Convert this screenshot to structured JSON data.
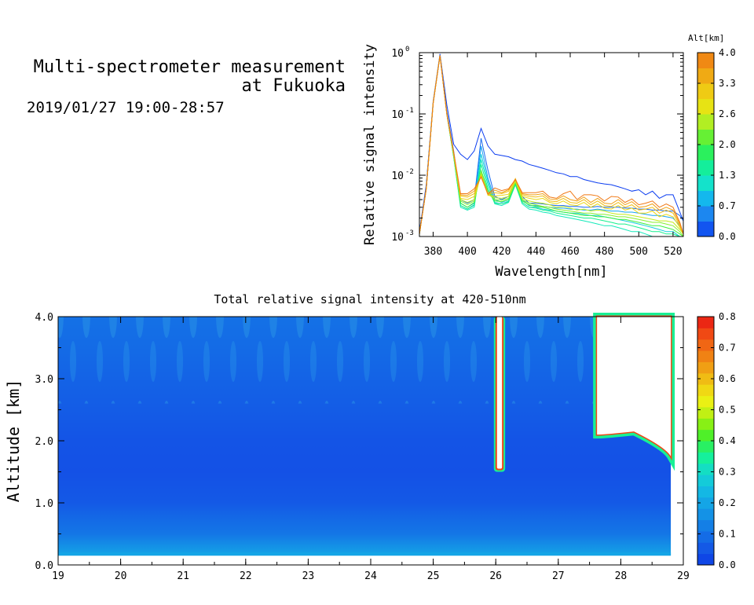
{
  "header": {
    "title_line1": "Multi-spectrometer measurement",
    "title_line2": "at Fukuoka",
    "date_range": "2019/01/27 19:00-28:57"
  },
  "colors": {
    "spectrum_palette": [
      "#0a3cf0",
      "#1e78f0",
      "#14b4f0",
      "#14e6c8",
      "#14f08c",
      "#3cf03c",
      "#a0f028",
      "#e6e614",
      "#f0c814",
      "#f0a014",
      "#f07814"
    ],
    "intensity_palette": [
      "#0a3ce6",
      "#1450e6",
      "#1464e6",
      "#1478e6",
      "#148ce6",
      "#14a0e6",
      "#14b4e6",
      "#14c8dc",
      "#14dcc8",
      "#14f0a0",
      "#28f064",
      "#50f028",
      "#8cf014",
      "#c8f014",
      "#f0f014",
      "#f0d214",
      "#f0b414",
      "#f09614",
      "#f07814",
      "#f05a14",
      "#f03c14",
      "#e61414"
    ]
  },
  "chart_data": [
    {
      "type": "line",
      "title": "",
      "xlabel": "Wavelength[nm]",
      "ylabel": "Relative signal intensity",
      "yscale": "log",
      "xlim": [
        372,
        526
      ],
      "ylim": [
        0.001,
        1
      ],
      "xticks": [
        380,
        400,
        420,
        440,
        460,
        480,
        500,
        520
      ],
      "yticks": [
        {
          "value": 1,
          "label": "10",
          "exp": "0"
        },
        {
          "value": 0.1,
          "label": "10",
          "exp": "-1"
        },
        {
          "value": 0.01,
          "label": "10",
          "exp": "-2"
        },
        {
          "value": 0.001,
          "label": "10",
          "exp": "-3"
        }
      ],
      "colorbar": {
        "label": "Alt[km]",
        "range": [
          0,
          4
        ],
        "ticks": [
          "4.0",
          "3.3",
          "2.6",
          "2.0",
          "1.3",
          "0.7",
          "0.0"
        ]
      },
      "x": [
        372,
        376,
        380,
        384,
        388,
        392,
        396,
        400,
        404,
        408,
        412,
        416,
        420,
        424,
        428,
        432,
        436,
        440,
        444,
        448,
        452,
        456,
        460,
        464,
        468,
        472,
        476,
        480,
        484,
        488,
        492,
        496,
        500,
        504,
        508,
        512,
        516,
        520,
        524,
        526
      ],
      "series": [
        {
          "altitude_km": 0.0,
          "values": [
            0.0012,
            0.007,
            0.16,
            0.95,
            0.14,
            0.032,
            0.022,
            0.018,
            0.025,
            0.058,
            0.03,
            0.022,
            0.021,
            0.02,
            0.018,
            0.017,
            0.015,
            0.014,
            0.013,
            0.012,
            0.011,
            0.0105,
            0.0095,
            0.0095,
            0.0085,
            0.008,
            0.0075,
            0.0072,
            0.007,
            0.0065,
            0.006,
            0.0055,
            0.0058,
            0.0048,
            0.0055,
            0.0042,
            0.0048,
            0.0048,
            0.0025,
            0.0018
          ]
        },
        {
          "altitude_km": 0.3,
          "values": [
            0.0011,
            0.0065,
            0.15,
            0.92,
            0.11,
            0.025,
            0.004,
            0.0035,
            0.004,
            0.04,
            0.012,
            0.0045,
            0.004,
            0.0045,
            0.008,
            0.0045,
            0.0035,
            0.0035,
            0.0034,
            0.0033,
            0.0032,
            0.0032,
            0.0031,
            0.0031,
            0.003,
            0.003,
            0.0031,
            0.003,
            0.003,
            0.003,
            0.0029,
            0.0029,
            0.0028,
            0.0028,
            0.0027,
            0.0027,
            0.0026,
            0.0026,
            0.0022,
            0.0018
          ]
        },
        {
          "altitude_km": 0.7,
          "values": [
            0.0011,
            0.006,
            0.15,
            0.9,
            0.1,
            0.022,
            0.0035,
            0.003,
            0.0035,
            0.03,
            0.009,
            0.004,
            0.0036,
            0.004,
            0.0075,
            0.004,
            0.0032,
            0.0032,
            0.0031,
            0.003,
            0.0029,
            0.0029,
            0.0028,
            0.0028,
            0.0027,
            0.0027,
            0.0028,
            0.0027,
            0.0026,
            0.0026,
            0.0025,
            0.0025,
            0.0024,
            0.0023,
            0.0022,
            0.0022,
            0.0021,
            0.002,
            0.0015,
            0.0011
          ]
        },
        {
          "altitude_km": 1.0,
          "values": [
            0.0011,
            0.006,
            0.15,
            0.9,
            0.1,
            0.02,
            0.0032,
            0.0028,
            0.0032,
            0.022,
            0.008,
            0.0036,
            0.0034,
            0.0038,
            0.007,
            0.0036,
            0.003,
            0.003,
            0.0028,
            0.0027,
            0.0026,
            0.0025,
            0.0024,
            0.0024,
            0.0023,
            0.0022,
            0.0022,
            0.0021,
            0.002,
            0.0019,
            0.0018,
            0.0017,
            0.0016,
            0.0015,
            0.0014,
            0.0013,
            0.0012,
            0.0012,
            0.001,
            0.001
          ]
        },
        {
          "altitude_km": 1.3,
          "values": [
            0.0011,
            0.006,
            0.15,
            0.9,
            0.1,
            0.02,
            0.003,
            0.0027,
            0.003,
            0.018,
            0.007,
            0.0034,
            0.0032,
            0.0036,
            0.007,
            0.0034,
            0.0028,
            0.0027,
            0.0025,
            0.0024,
            0.0022,
            0.0021,
            0.002,
            0.0019,
            0.0018,
            0.0017,
            0.0016,
            0.0015,
            0.0015,
            0.0014,
            0.0013,
            0.0012,
            0.0012,
            0.0011,
            0.001,
            0.001,
            0.001,
            0.001,
            0.001,
            0.001
          ]
        },
        {
          "altitude_km": 1.6,
          "values": [
            0.0011,
            0.006,
            0.15,
            0.9,
            0.1,
            0.02,
            0.0032,
            0.0028,
            0.0033,
            0.015,
            0.006,
            0.0035,
            0.0034,
            0.0037,
            0.0072,
            0.0036,
            0.003,
            0.0029,
            0.0027,
            0.0026,
            0.0024,
            0.0023,
            0.0022,
            0.0021,
            0.002,
            0.002,
            0.0019,
            0.0018,
            0.0017,
            0.0016,
            0.0016,
            0.0015,
            0.0014,
            0.0013,
            0.0012,
            0.0012,
            0.0011,
            0.0011,
            0.001,
            0.001
          ]
        },
        {
          "altitude_km": 2.0,
          "values": [
            0.0011,
            0.006,
            0.15,
            0.9,
            0.1,
            0.021,
            0.0035,
            0.003,
            0.0036,
            0.012,
            0.0055,
            0.0038,
            0.0037,
            0.004,
            0.0075,
            0.0038,
            0.0033,
            0.0031,
            0.003,
            0.0028,
            0.0026,
            0.0025,
            0.0024,
            0.0023,
            0.0022,
            0.0022,
            0.0021,
            0.0021,
            0.002,
            0.0019,
            0.0019,
            0.0018,
            0.0017,
            0.0016,
            0.0015,
            0.0015,
            0.0014,
            0.0013,
            0.0011,
            0.001
          ]
        },
        {
          "altitude_km": 2.3,
          "values": [
            0.0011,
            0.006,
            0.15,
            0.9,
            0.1,
            0.021,
            0.0038,
            0.0033,
            0.0038,
            0.011,
            0.005,
            0.004,
            0.0039,
            0.0042,
            0.0078,
            0.004,
            0.0035,
            0.0033,
            0.0031,
            0.003,
            0.0028,
            0.0027,
            0.0026,
            0.0025,
            0.0024,
            0.0024,
            0.0023,
            0.0023,
            0.0022,
            0.0021,
            0.0021,
            0.002,
            0.0019,
            0.0018,
            0.0017,
            0.0017,
            0.0016,
            0.0015,
            0.0012,
            0.001
          ]
        },
        {
          "altitude_km": 2.6,
          "values": [
            0.0011,
            0.006,
            0.15,
            0.9,
            0.1,
            0.022,
            0.004,
            0.0036,
            0.004,
            0.0105,
            0.0048,
            0.0043,
            0.0042,
            0.0045,
            0.008,
            0.0042,
            0.0038,
            0.0036,
            0.0035,
            0.0033,
            0.003,
            0.0031,
            0.0029,
            0.0027,
            0.0028,
            0.0026,
            0.0027,
            0.0026,
            0.0024,
            0.0023,
            0.0023,
            0.0022,
            0.0021,
            0.002,
            0.0019,
            0.0018,
            0.0018,
            0.0017,
            0.0013,
            0.0011
          ]
        },
        {
          "altitude_km": 3.0,
          "values": [
            0.0011,
            0.006,
            0.15,
            0.9,
            0.1,
            0.022,
            0.0042,
            0.004,
            0.0045,
            0.01,
            0.0047,
            0.0046,
            0.0047,
            0.0049,
            0.0085,
            0.0045,
            0.0042,
            0.004,
            0.0042,
            0.0036,
            0.0034,
            0.0038,
            0.0033,
            0.0032,
            0.0036,
            0.003,
            0.0034,
            0.0029,
            0.0028,
            0.0032,
            0.0027,
            0.0029,
            0.0024,
            0.0024,
            0.0026,
            0.0021,
            0.0023,
            0.0021,
            0.0014,
            0.0011
          ]
        },
        {
          "altitude_km": 3.3,
          "values": [
            0.0011,
            0.006,
            0.15,
            0.9,
            0.1,
            0.023,
            0.0046,
            0.0044,
            0.005,
            0.0098,
            0.0048,
            0.0052,
            0.005,
            0.0055,
            0.0088,
            0.0048,
            0.0045,
            0.0044,
            0.0046,
            0.0038,
            0.0037,
            0.0042,
            0.0036,
            0.0035,
            0.004,
            0.0033,
            0.0038,
            0.0032,
            0.0031,
            0.0036,
            0.003,
            0.0033,
            0.0027,
            0.0028,
            0.003,
            0.0024,
            0.0027,
            0.0024,
            0.0015,
            0.0011
          ]
        },
        {
          "altitude_km": 3.6,
          "values": [
            0.0011,
            0.006,
            0.15,
            0.9,
            0.1,
            0.023,
            0.0048,
            0.0047,
            0.0055,
            0.0095,
            0.0049,
            0.0057,
            0.0052,
            0.0058,
            0.0085,
            0.005,
            0.0048,
            0.0048,
            0.005,
            0.0041,
            0.004,
            0.0046,
            0.004,
            0.0038,
            0.0044,
            0.0036,
            0.0042,
            0.0035,
            0.0034,
            0.004,
            0.0033,
            0.0037,
            0.003,
            0.0031,
            0.0034,
            0.0027,
            0.003,
            0.0027,
            0.0016,
            0.0011
          ]
        },
        {
          "altitude_km": 4.0,
          "values": [
            0.0011,
            0.006,
            0.15,
            0.9,
            0.1,
            0.024,
            0.005,
            0.005,
            0.006,
            0.0093,
            0.005,
            0.0062,
            0.0056,
            0.006,
            0.0085,
            0.0052,
            0.0052,
            0.0052,
            0.0055,
            0.0044,
            0.0042,
            0.005,
            0.0055,
            0.004,
            0.0048,
            0.0048,
            0.0046,
            0.0038,
            0.0045,
            0.0044,
            0.0036,
            0.0041,
            0.0033,
            0.0035,
            0.0038,
            0.003,
            0.0034,
            0.003,
            0.0017,
            0.0011
          ]
        }
      ]
    },
    {
      "type": "heatmap",
      "title": "Total relative signal intensity at 420-510nm",
      "xlabel": "",
      "ylabel": "Altitude [km]",
      "xlim": [
        19,
        29
      ],
      "ylim": [
        0,
        4
      ],
      "xticks": [
        "19",
        "20",
        "21",
        "22",
        "23",
        "24",
        "25",
        "26",
        "27",
        "28",
        "29"
      ],
      "yticks": [
        "0.0",
        "1.0",
        "2.0",
        "3.0",
        "4.0"
      ],
      "data_extent_x": [
        19,
        28.8
      ],
      "data_extent_y": [
        0.15,
        4.0
      ],
      "colorbar": {
        "range": [
          0,
          0.8
        ],
        "ticks": [
          "0.8",
          "0.7",
          "0.6",
          "0.5",
          "0.4",
          "0.3",
          "0.2",
          "0.1",
          "0.0"
        ]
      },
      "profile_altitudes_km": [
        0.15,
        0.5,
        0.8,
        1.0,
        1.5,
        2.0,
        2.5,
        3.0,
        3.5,
        4.0
      ],
      "profile_values": [
        0.2,
        0.11,
        0.08,
        0.055,
        0.04,
        0.045,
        0.06,
        0.075,
        0.09,
        0.1
      ],
      "saturated_regions": [
        {
          "x_from": 26.02,
          "x_to": 26.1,
          "alt_from": 1.55,
          "alt_to": 4.0
        },
        {
          "x_from": 27.62,
          "x_to": 28.8,
          "alt_from_start": 2.1,
          "alt_from_end": 1.75,
          "alt_to": 4.0
        }
      ]
    }
  ]
}
